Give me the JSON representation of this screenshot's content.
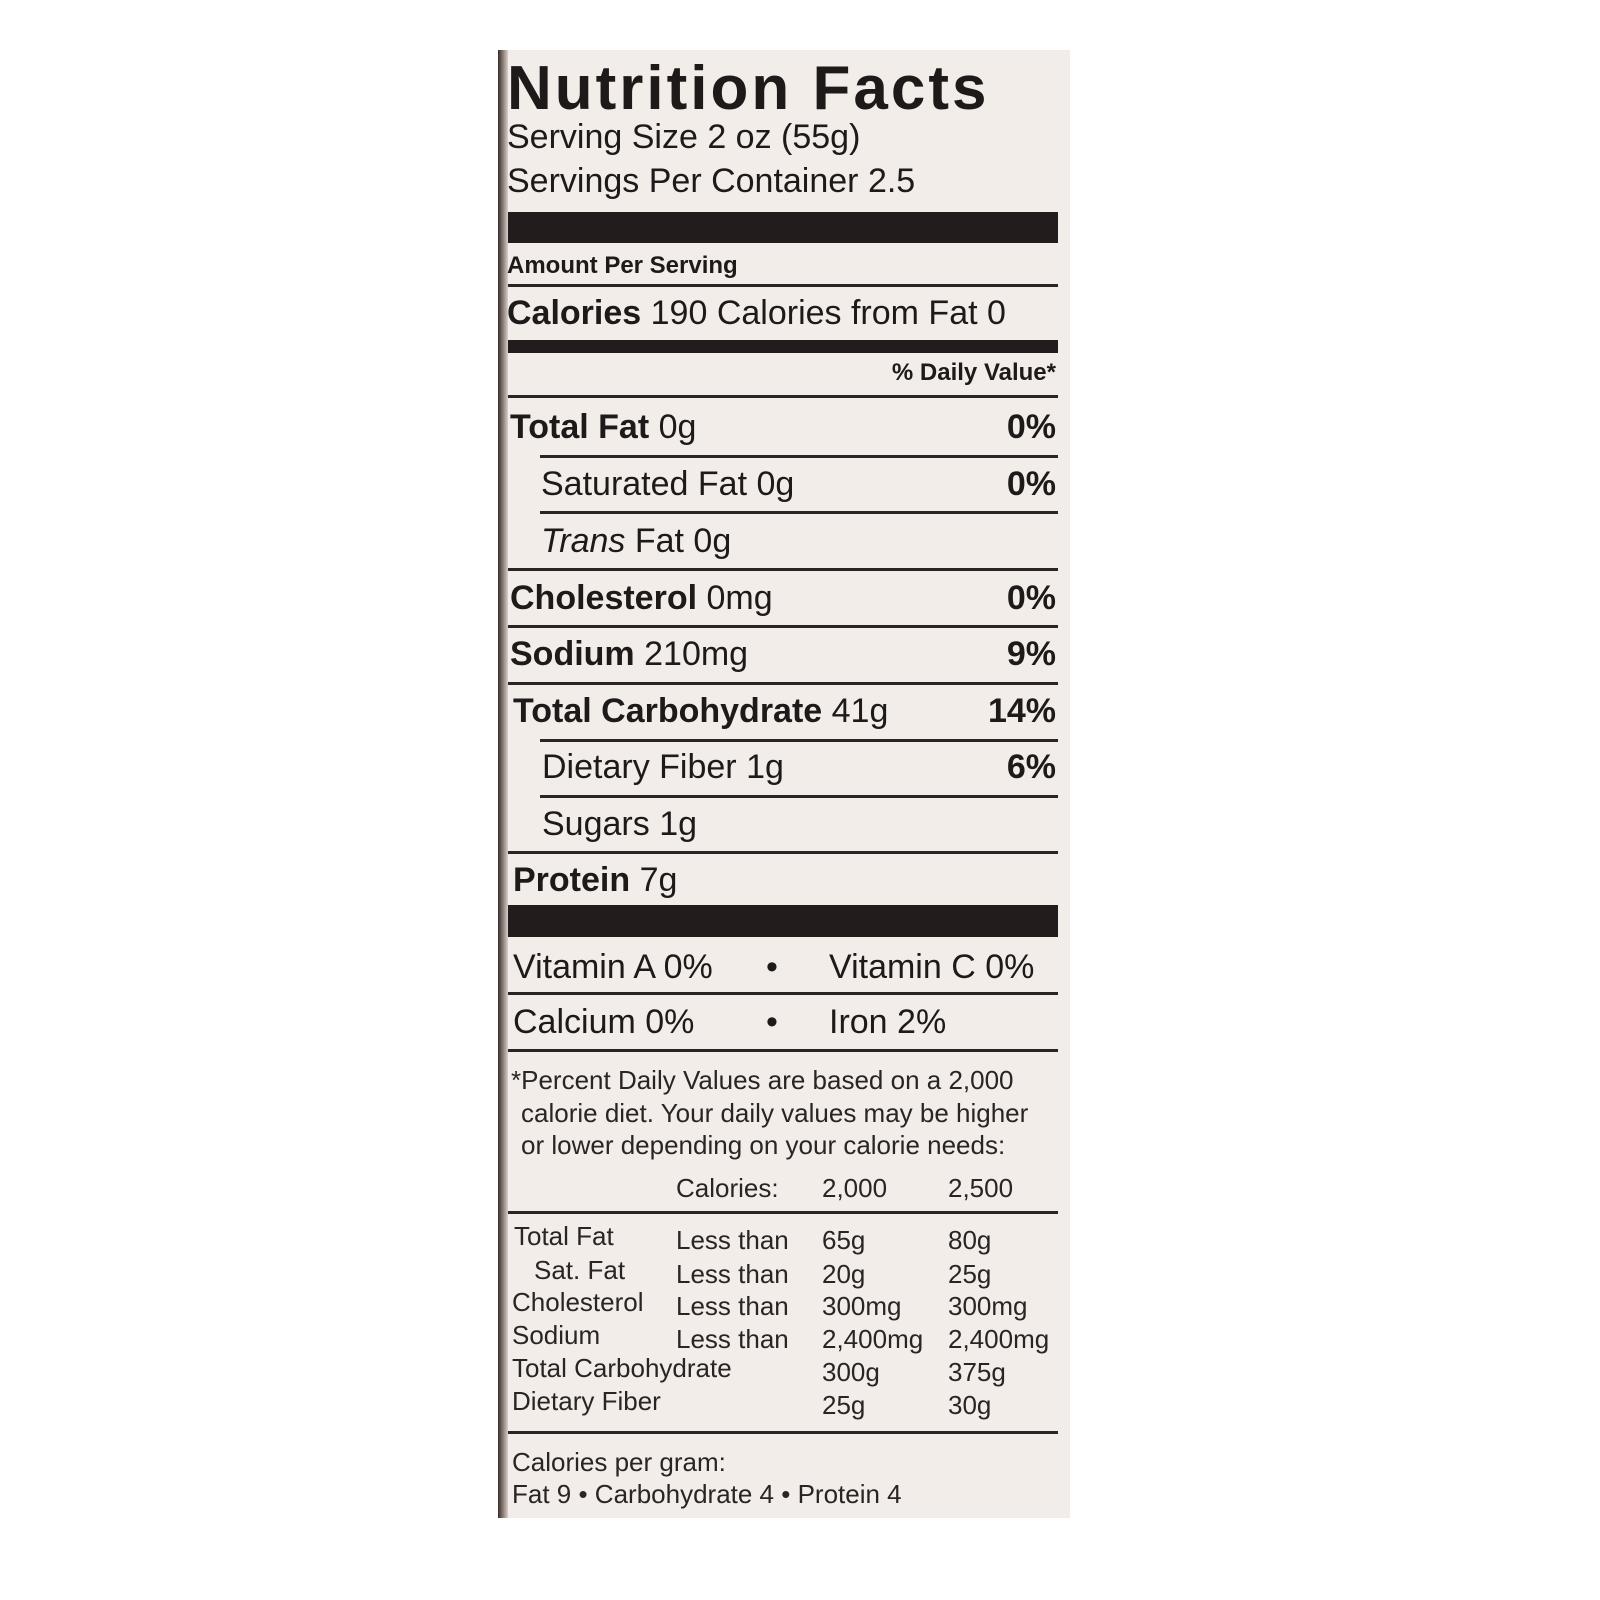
{
  "title": "Nutrition Facts",
  "serving_size": "Serving Size 2 oz (55g)",
  "servings_per_container": "Servings Per Container 2.5",
  "amount_per_serving": "Amount Per Serving",
  "calories": {
    "label": "Calories",
    "value": "190",
    "from_fat": "Calories from Fat 0"
  },
  "daily_value_header": "% Daily Value*",
  "nutrients": [
    {
      "label": "Total Fat",
      "amount": "0g",
      "dv": "0%"
    },
    {
      "label": "Saturated Fat",
      "amount": "0g",
      "dv": "0%"
    },
    {
      "label": "Trans",
      "label_rest": "Fat",
      "amount": "0g",
      "dv": ""
    },
    {
      "label": "Cholesterol",
      "amount": "0mg",
      "dv": "0%"
    },
    {
      "label": "Sodium",
      "amount": "210mg",
      "dv": "9%"
    },
    {
      "label": "Total Carbohydrate",
      "amount": "41g",
      "dv": "14%"
    },
    {
      "label": "Dietary Fiber",
      "amount": "1g",
      "dv": "6%"
    },
    {
      "label": "Sugars",
      "amount": "1g",
      "dv": ""
    },
    {
      "label": "Protein",
      "amount": "7g",
      "dv": ""
    }
  ],
  "vitamins": [
    {
      "left": "Vitamin A 0%",
      "right": "Vitamin C 0%"
    },
    {
      "left": "Calcium 0%",
      "right": "Iron 2%"
    }
  ],
  "bullet": "•",
  "footnote": [
    "*Percent Daily Values are based on a 2,000",
    "calorie diet. Your daily values may be higher",
    "or lower depending on your calorie needs:"
  ],
  "dv_table": {
    "header": {
      "label": "Calories:",
      "col1": "2,000",
      "col2": "2,500"
    },
    "rows": [
      {
        "nutrient": "Total Fat",
        "qualifier": "Less than",
        "col1": "65g",
        "col2": "80g"
      },
      {
        "nutrient": "Sat. Fat",
        "qualifier": "Less than",
        "col1": "20g",
        "col2": "25g"
      },
      {
        "nutrient": "Cholesterol",
        "qualifier": "Less than",
        "col1": "300mg",
        "col2": "300mg"
      },
      {
        "nutrient": "Sodium",
        "qualifier": "Less than",
        "col1": "2,400mg",
        "col2": "2,400mg"
      },
      {
        "nutrient": "Total Carbohydrate",
        "qualifier": "",
        "col1": "300g",
        "col2": "375g"
      },
      {
        "nutrient": "Dietary Fiber",
        "qualifier": "",
        "col1": "25g",
        "col2": "30g"
      }
    ]
  },
  "calories_per_gram": {
    "label": "Calories per gram:",
    "values": "Fat 9 • Carbohydrate 4 • Protein 4"
  }
}
